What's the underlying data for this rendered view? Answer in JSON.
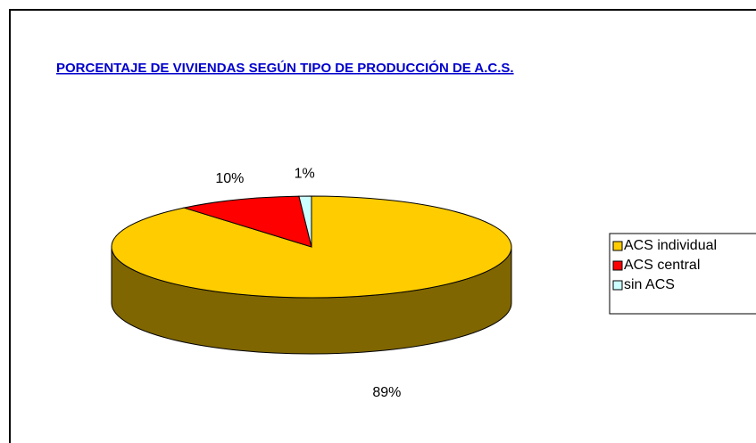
{
  "chart_data": {
    "type": "pie3d",
    "title": "PORCENTAJE DE VIVIENDAS SEGÚN TIPO DE PRODUCCIÓN DE A.C.S.",
    "categories": [
      "ACS individual",
      "ACS central",
      "sin ACS"
    ],
    "values": [
      89,
      10,
      1
    ],
    "value_labels": [
      "89%",
      "10%",
      "1%"
    ],
    "colors": [
      "#ffcc00",
      "#ff0000",
      "#ccffff"
    ],
    "legend": "right"
  }
}
